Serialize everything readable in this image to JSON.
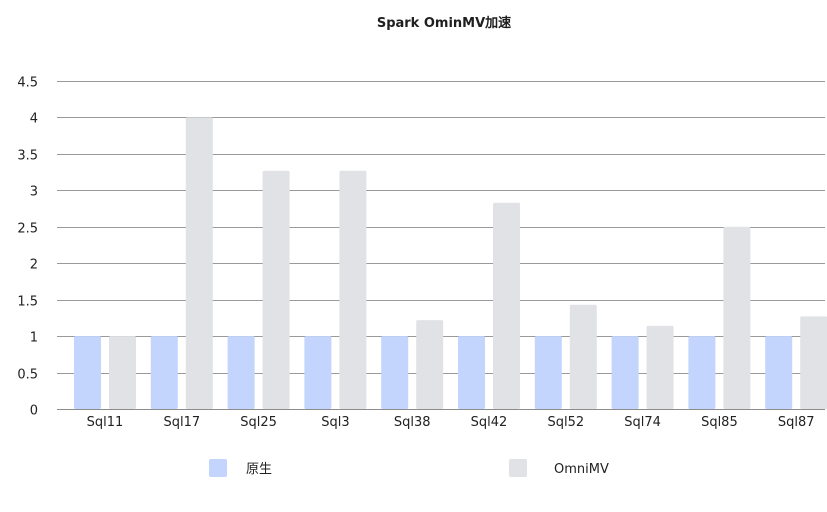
{
  "chart_data": {
    "type": "bar",
    "title": "Spark OminMV加速",
    "categories": [
      "Sql11",
      "Sql17",
      "Sql25",
      "Sql3",
      "Sql38",
      "Sql42",
      "Sql52",
      "Sql74",
      "Sql85",
      "Sql87"
    ],
    "series": [
      {
        "name": "原生",
        "color": "#c3d5fd",
        "values": [
          1,
          1,
          1,
          1,
          1,
          1,
          1,
          1,
          1,
          1
        ]
      },
      {
        "name": "OmniMV",
        "color": "#e1e2e6",
        "values": [
          1,
          4,
          3.27,
          3.27,
          1.22,
          2.83,
          1.43,
          1.14,
          2.5,
          1.27
        ]
      }
    ],
    "y_ticks": [
      "0",
      "0.5",
      "1",
      "1.5",
      "2",
      "2.5",
      "3",
      "3.5",
      "4",
      "4.5"
    ],
    "ylim": [
      0,
      4.5
    ],
    "grid": true,
    "legend": "bottom"
  }
}
